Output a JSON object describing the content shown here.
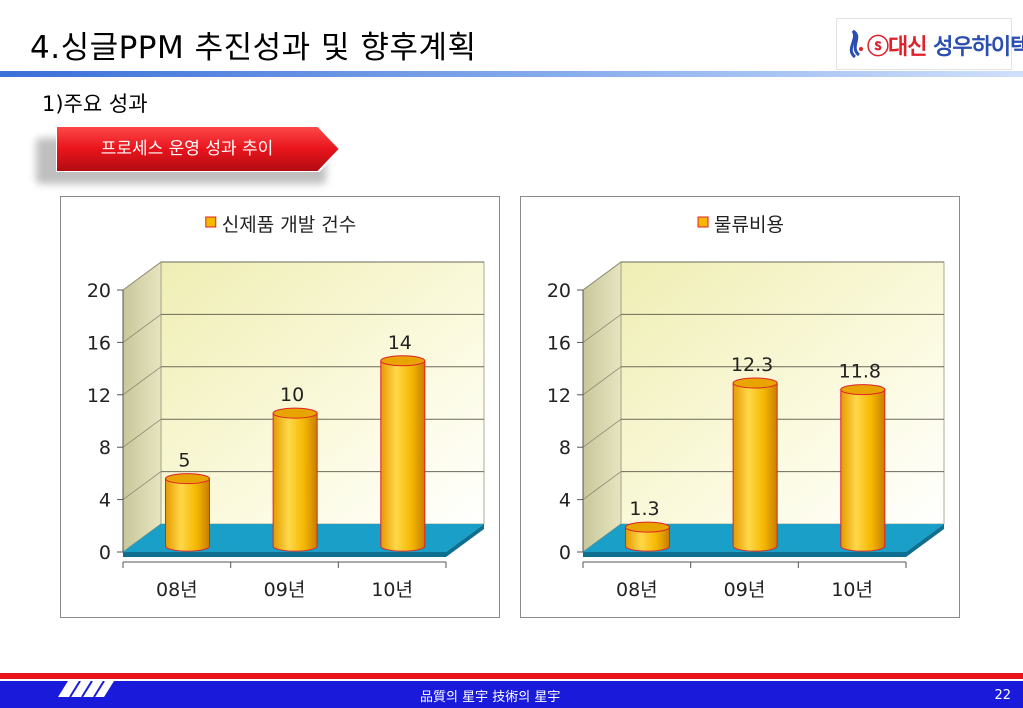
{
  "page": {
    "title": "4.싱글PPM 추진성과 및 향후계획",
    "subtitle": "1)주요 성과",
    "banner": "프로세스 운영 성과 추이",
    "logo_text_red": "ⓢ대신 ",
    "logo_text_blue": "성우하이텍",
    "footer_motto": "品質의 星宇   技術의 星宇",
    "page_number": "22"
  },
  "colors": {
    "accent_red": "#e8141c",
    "footer_blue": "#1a1adb",
    "bar_gold": "#f5b800",
    "floor_blue": "#1aa0c8",
    "wall_yellow": "#f6f4c8"
  },
  "chart_data": [
    {
      "type": "bar",
      "title": "",
      "legend": "신제품 개발 건수",
      "categories": [
        "08년",
        "09년",
        "10년"
      ],
      "series": [
        {
          "name": "신제품 개발 건수",
          "values": [
            5,
            10,
            14
          ]
        }
      ],
      "data_labels": [
        "5",
        "10",
        "14"
      ],
      "ylim": [
        0,
        20
      ],
      "yticks": [
        "0",
        "4",
        "8",
        "12",
        "16",
        "20"
      ],
      "grid": true,
      "legend_position": "top"
    },
    {
      "type": "bar",
      "title": "",
      "legend": "물류비용",
      "categories": [
        "08년",
        "09년",
        "10년"
      ],
      "series": [
        {
          "name": "물류비용",
          "values": [
            1.3,
            12.3,
            11.8
          ]
        }
      ],
      "data_labels": [
        "1.3",
        "12.3",
        "11.8"
      ],
      "ylim": [
        0,
        20
      ],
      "yticks": [
        "0",
        "4",
        "8",
        "12",
        "16",
        "20"
      ],
      "grid": true,
      "legend_position": "top"
    }
  ]
}
